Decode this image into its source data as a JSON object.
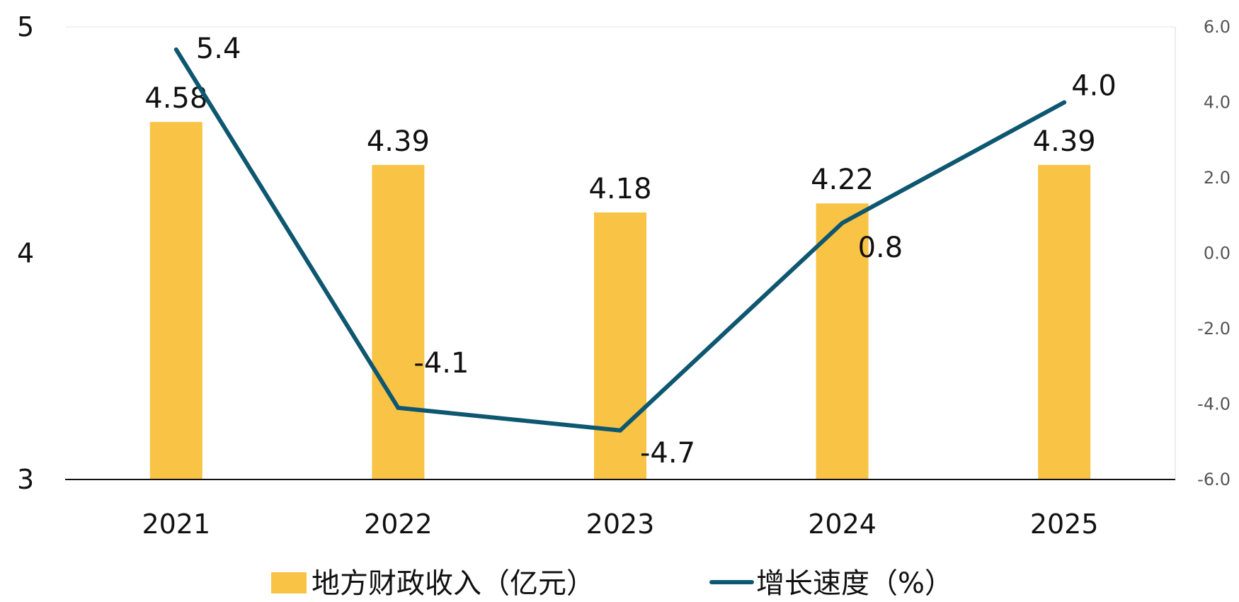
{
  "chart_data": {
    "type": "bar",
    "categories": [
      "2021",
      "2022",
      "2023",
      "2024",
      "2025"
    ],
    "series": [
      {
        "name": "地方财政收入（亿元）",
        "type": "bar",
        "axis": "left",
        "values": [
          4.58,
          4.39,
          4.18,
          4.22,
          4.39
        ],
        "labels": [
          "4.58",
          "4.39",
          "4.18",
          "4.22",
          "4.39"
        ],
        "color": "#F9C345"
      },
      {
        "name": "增长速度（%）",
        "type": "line",
        "axis": "right",
        "values": [
          5.4,
          -4.1,
          -4.7,
          0.8,
          4.0
        ],
        "labels": [
          "5.4",
          "-4.1",
          "-4.7",
          "0.8",
          "4.0"
        ],
        "color": "#0E5770"
      }
    ],
    "y_left": {
      "range": [
        3,
        5
      ],
      "ticks": [
        "3",
        "4",
        "5"
      ]
    },
    "y_right": {
      "range": [
        -6,
        6
      ],
      "ticks": [
        "-6.0",
        "-4.0",
        "-2.0",
        "0.0",
        "2.0",
        "4.0",
        "6.0"
      ]
    },
    "grid": false,
    "legend_position": "bottom",
    "title": "",
    "xlabel": "",
    "ylabel": ""
  }
}
